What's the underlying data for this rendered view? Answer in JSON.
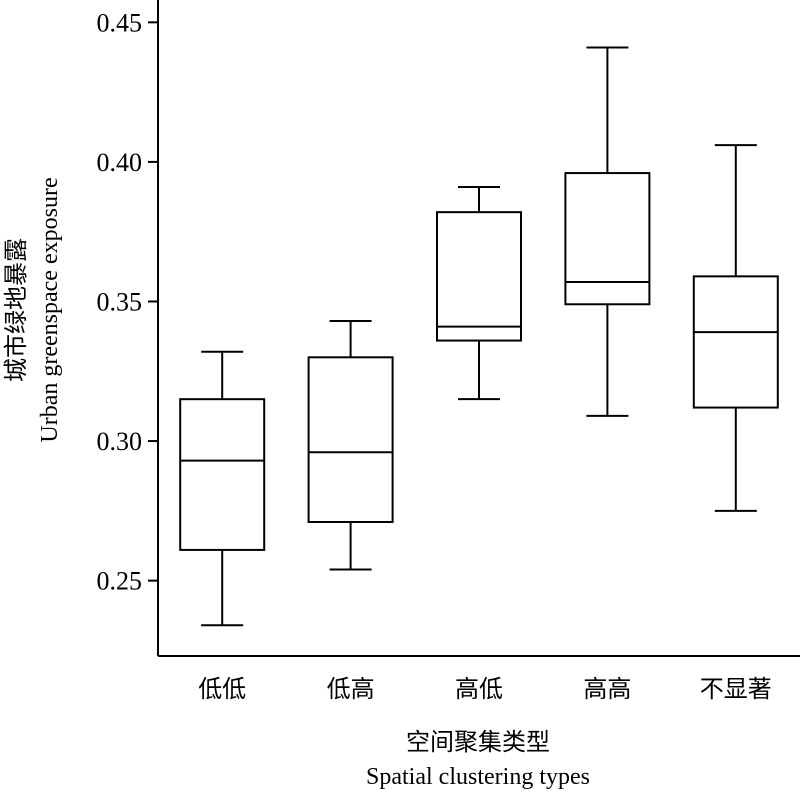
{
  "chart_data": {
    "type": "box",
    "title": "",
    "xlabel_cn": "空间聚集类型",
    "xlabel_en": "Spatial clustering types",
    "ylabel_cn": "城市绿地暴露",
    "ylabel_en": "Urban greenspace exposure",
    "ylim": [
      0.223,
      0.458
    ],
    "yticks": [
      0.25,
      0.3,
      0.35,
      0.4,
      0.45
    ],
    "ytick_labels": [
      "0.25",
      "0.30",
      "0.35",
      "0.40",
      "0.45"
    ],
    "categories": [
      "低低",
      "低高",
      "高低",
      "高高",
      "不显著"
    ],
    "boxes": [
      {
        "whisker_low": 0.234,
        "q1": 0.261,
        "median": 0.293,
        "q3": 0.315,
        "whisker_high": 0.332
      },
      {
        "whisker_low": 0.254,
        "q1": 0.271,
        "median": 0.296,
        "q3": 0.33,
        "whisker_high": 0.343
      },
      {
        "whisker_low": 0.315,
        "q1": 0.336,
        "median": 0.341,
        "q3": 0.382,
        "whisker_high": 0.391
      },
      {
        "whisker_low": 0.309,
        "q1": 0.349,
        "median": 0.357,
        "q3": 0.396,
        "whisker_high": 0.441
      },
      {
        "whisker_low": 0.275,
        "q1": 0.312,
        "median": 0.339,
        "q3": 0.359,
        "whisker_high": 0.406
      }
    ],
    "grid": false,
    "legend": "none",
    "colors": {
      "stroke": "#000000",
      "box_fill": "#ffffff"
    }
  }
}
